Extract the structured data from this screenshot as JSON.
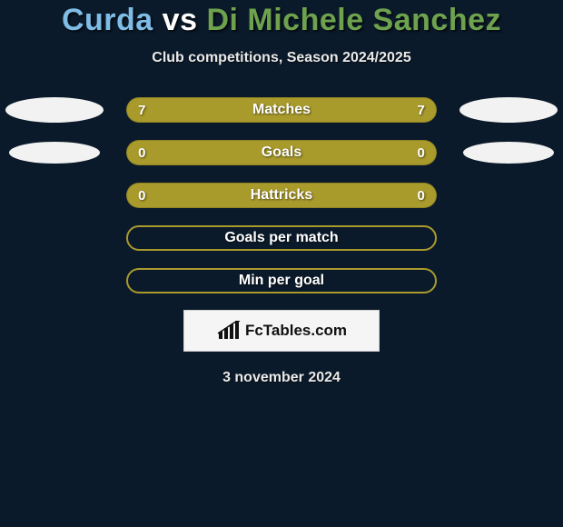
{
  "colors": {
    "background": "#0b1a2a",
    "bar_fill": "#a99a2c",
    "bar_empty_fill": "#0b1a2a",
    "bar_empty_border": "#a99a2c",
    "oval": "#f2f2f2",
    "title_player1": "#7fbce6",
    "title_vs": "#ffffff",
    "title_player2": "#6ea24e",
    "text": "#e9e9e9"
  },
  "title": {
    "player1": "Curda",
    "vs": "vs",
    "player2": "Di Michele Sanchez"
  },
  "subtitle": "Club competitions, Season 2024/2025",
  "rows": [
    {
      "label": "Matches",
      "left": "7",
      "right": "7",
      "show_ovals": true,
      "oval_left_small": false,
      "oval_right_small": false,
      "filled": true
    },
    {
      "label": "Goals",
      "left": "0",
      "right": "0",
      "show_ovals": true,
      "oval_left_small": true,
      "oval_right_small": true,
      "filled": true
    },
    {
      "label": "Hattricks",
      "left": "0",
      "right": "0",
      "show_ovals": false,
      "oval_left_small": false,
      "oval_right_small": false,
      "filled": true
    },
    {
      "label": "Goals per match",
      "left": "",
      "right": "",
      "show_ovals": false,
      "oval_left_small": false,
      "oval_right_small": false,
      "filled": false
    },
    {
      "label": "Min per goal",
      "left": "",
      "right": "",
      "show_ovals": false,
      "oval_left_small": false,
      "oval_right_small": false,
      "filled": false
    }
  ],
  "logo": {
    "text": "FcTables.com"
  },
  "date": "3 november 2024"
}
